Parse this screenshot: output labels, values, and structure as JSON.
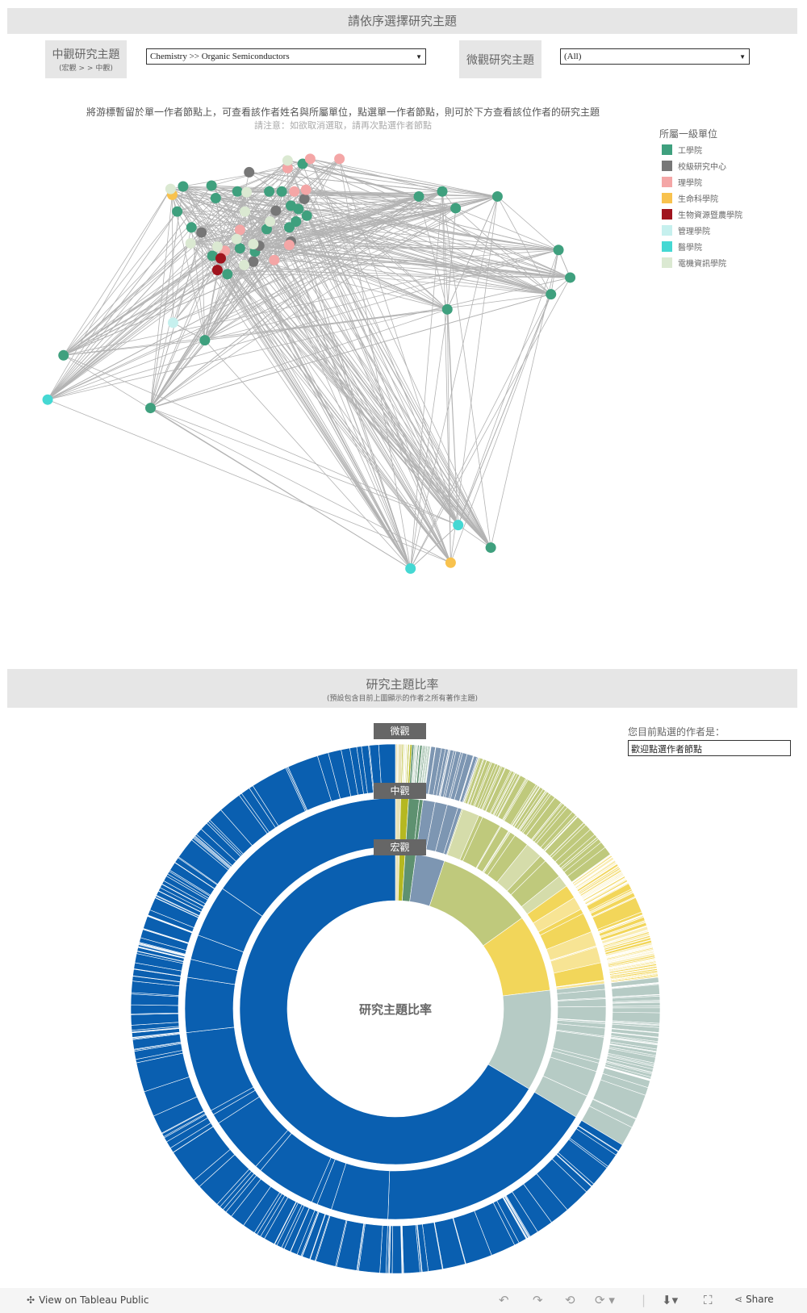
{
  "top_header": {
    "title": "請依序選擇研究主題"
  },
  "filters": {
    "meso": {
      "label": "中觀研究主題",
      "sublabel": "(宏觀 > > 中觀)",
      "value": "Chemistry >> Organic Semiconductors"
    },
    "micro": {
      "label": "微觀研究主題",
      "value": "(All)"
    }
  },
  "network": {
    "instruction": "將游標暫留於單一作者節點上，可查看該作者姓名與所屬單位，點選單一作者節點，則可於下方查看該位作者的研究主題",
    "note": "請注意：如欲取消選取，請再次點選作者節點",
    "legend": {
      "title": "所屬一級單位",
      "items": [
        {
          "label": "工學院",
          "color": "#3fa07e"
        },
        {
          "label": "校級研究中心",
          "color": "#777777"
        },
        {
          "label": "理學院",
          "color": "#f4a6a6"
        },
        {
          "label": "生命科學院",
          "color": "#f8c24e"
        },
        {
          "label": "生物資源暨農學院",
          "color": "#a0141e"
        },
        {
          "label": "管理學院",
          "color": "#c6f0ee"
        },
        {
          "label": "醫學院",
          "color": "#45d8d3"
        },
        {
          "label": "電機資訊學院",
          "color": "#dbe9d2"
        }
      ]
    },
    "edge_color": "#b3b3b3"
  },
  "bottom_header": {
    "title": "研究主題比率",
    "subtitle": "(預設包含目前上圖顯示的作者之所有著作主題)"
  },
  "selected_author": {
    "label": "您目前點選的作者是：",
    "value": "歡迎點選作者節點"
  },
  "chart_data": {
    "type": "sunburst",
    "center_label": "研究主題比率",
    "ring_labels": {
      "outer": "微觀",
      "middle": "中觀",
      "inner": "宏觀"
    },
    "inner_ring_shares_percent": [
      {
        "color": "#e8e2b8",
        "value": 0.4
      },
      {
        "color": "#b5b820",
        "value": 0.6
      },
      {
        "color": "#5e9170",
        "value": 1.1
      },
      {
        "color": "#7d96b2",
        "value": 3.0
      },
      {
        "color": "#bfc97c",
        "value": 10.0
      },
      {
        "color": "#f2d65a",
        "value": 8.0
      },
      {
        "color": "#b6cbc5",
        "value": 10.5
      },
      {
        "color": "#0a5fb0",
        "value": 66.4
      }
    ]
  },
  "footer": {
    "view_label": "View on Tableau Public",
    "share_label": "Share"
  }
}
